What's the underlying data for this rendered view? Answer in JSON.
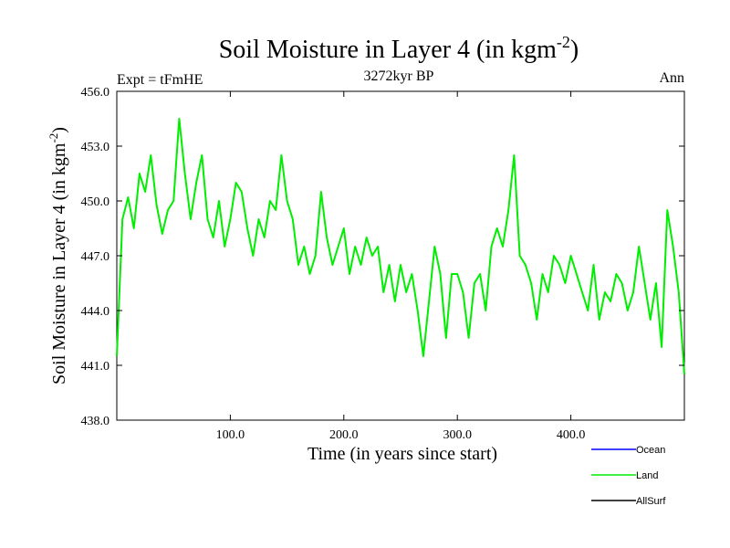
{
  "chart_data": {
    "type": "line",
    "title": "Soil Moisture in Layer 4 (in kgm",
    "title_superscript": "-2",
    "title_suffix": ")",
    "subtitle_left": "Expt = tFmHE",
    "subtitle_center": "3272kyr BP",
    "subtitle_right": "Ann",
    "xlabel": "Time (in years since start)",
    "ylabel": "Soil Moisture in Layer 4 (in kgm",
    "ylabel_superscript": "-2",
    "ylabel_suffix": ")",
    "xlim": [
      0,
      500
    ],
    "ylim": [
      438,
      456
    ],
    "x_ticks": [
      100,
      200,
      300,
      400
    ],
    "x_tick_labels": [
      "100.0",
      "200.0",
      "300.0",
      "400.0"
    ],
    "y_ticks": [
      438,
      441,
      444,
      447,
      450,
      453,
      456
    ],
    "y_tick_labels": [
      "438.0",
      "441.0",
      "444.0",
      "447.0",
      "450.0",
      "453.0",
      "456.0"
    ],
    "legend": [
      "Ocean",
      "Land",
      "AllSurf"
    ],
    "series": [
      {
        "name": "Land",
        "color": "#00ee00",
        "x": [
          0,
          5,
          10,
          15,
          20,
          25,
          30,
          35,
          40,
          45,
          50,
          55,
          60,
          65,
          70,
          75,
          80,
          85,
          90,
          95,
          100,
          105,
          110,
          115,
          120,
          125,
          130,
          135,
          140,
          145,
          150,
          155,
          160,
          165,
          170,
          175,
          180,
          185,
          190,
          195,
          200,
          205,
          210,
          215,
          220,
          225,
          230,
          235,
          240,
          245,
          250,
          255,
          260,
          265,
          270,
          275,
          280,
          285,
          290,
          295,
          300,
          305,
          310,
          315,
          320,
          325,
          330,
          335,
          340,
          345,
          350,
          355,
          360,
          365,
          370,
          375,
          380,
          385,
          390,
          395,
          400,
          405,
          410,
          415,
          420,
          425,
          430,
          435,
          440,
          445,
          450,
          455,
          460,
          465,
          470,
          475,
          480,
          485,
          490,
          495,
          500
        ],
        "values": [
          441.5,
          449.0,
          450.2,
          448.5,
          451.5,
          450.5,
          452.5,
          449.8,
          448.2,
          449.5,
          450.0,
          454.5,
          451.5,
          449.0,
          451.0,
          452.5,
          449.0,
          448.0,
          450.0,
          447.5,
          449.0,
          451.0,
          450.5,
          448.5,
          447.0,
          449.0,
          448.0,
          450.0,
          449.5,
          452.5,
          450.0,
          449.0,
          446.5,
          447.5,
          446.0,
          447.0,
          450.5,
          448.0,
          446.5,
          447.5,
          448.5,
          446.0,
          447.5,
          446.5,
          448.0,
          447.0,
          447.5,
          445.0,
          446.5,
          444.5,
          446.5,
          445.0,
          446.0,
          444.0,
          441.5,
          444.5,
          447.5,
          446.0,
          442.5,
          446.0,
          446.0,
          445.0,
          442.5,
          445.5,
          446.0,
          444.0,
          447.5,
          448.5,
          447.5,
          449.5,
          452.5,
          447.0,
          446.5,
          445.5,
          443.5,
          446.0,
          445.0,
          447.0,
          446.5,
          445.5,
          447.0,
          446.0,
          445.0,
          444.0,
          446.5,
          443.5,
          445.0,
          444.5,
          446.0,
          445.5,
          444.0,
          445.0,
          447.5,
          445.5,
          443.5,
          445.5,
          442.0,
          449.5,
          447.5,
          445.0,
          440.5
        ]
      },
      {
        "name": "Ocean",
        "color": "#0000ff"
      },
      {
        "name": "AllSurf",
        "color": "#000000"
      }
    ]
  }
}
